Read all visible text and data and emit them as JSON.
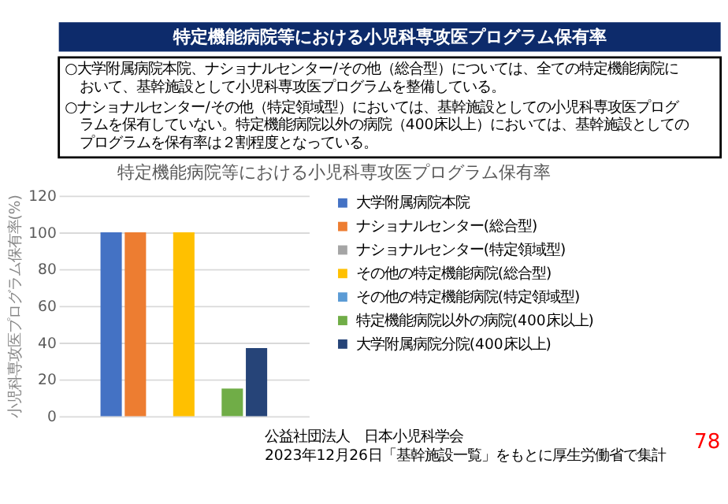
{
  "chart_data": {
    "type": "bar",
    "title": "特定機能病院等における小児科専攻医プログラム保有率",
    "ylabel": "小児科専攻医プログラム保有率(%)",
    "categories": [
      null
    ],
    "series": [
      {
        "name": "大学附属病院本院",
        "color": "#4472c4",
        "values": [
          100
        ]
      },
      {
        "name": "ナショナルセンター(総合型)",
        "color": "#ed7d31",
        "values": [
          100
        ]
      },
      {
        "name": "ナショナルセンター(特定領域型)",
        "color": "#a5a5a5",
        "values": [
          0
        ]
      },
      {
        "name": "その他の特定機能病院(総合型)",
        "color": "#ffc000",
        "values": [
          100
        ]
      },
      {
        "name": "その他の特定機能病院(特定領域型)",
        "color": "#5b9bd5",
        "values": [
          0
        ]
      },
      {
        "name": "特定機能病院以外の病院(400床以上)",
        "color": "#70ad47",
        "values": [
          15
        ]
      },
      {
        "name": "大学附属病院分院(400床以上)",
        "color": "#264478",
        "values": [
          37
        ]
      }
    ],
    "ylim": [
      0,
      120
    ],
    "yticks": [
      0,
      20,
      40,
      60,
      80,
      100,
      120
    ],
    "grid": "y",
    "legend": "right",
    "tick_labels": "y",
    "annotations": [
      "特定機能病院等における小児科専攻医プログラム保有率",
      "○大学附属病院本院、ナショナルセンター/その他（総合型）については、全ての特定機能病院において、基幹施設として小児科専攻医プログラムを整備している。",
      "○ナショナルセンター/その他（特定領域型）においては、基幹施設としての小児科専攻医プログラムを保有していない。特定機能病院以外の病院（400床以上）においては、基幹施設としてのプログラムを保有率は２割程度となっている。",
      "公益社団法人　日本小児科学会",
      "2023年12月26日「基幹施設一覧」をもとに厚生労働省で集計",
      "78"
    ]
  }
}
